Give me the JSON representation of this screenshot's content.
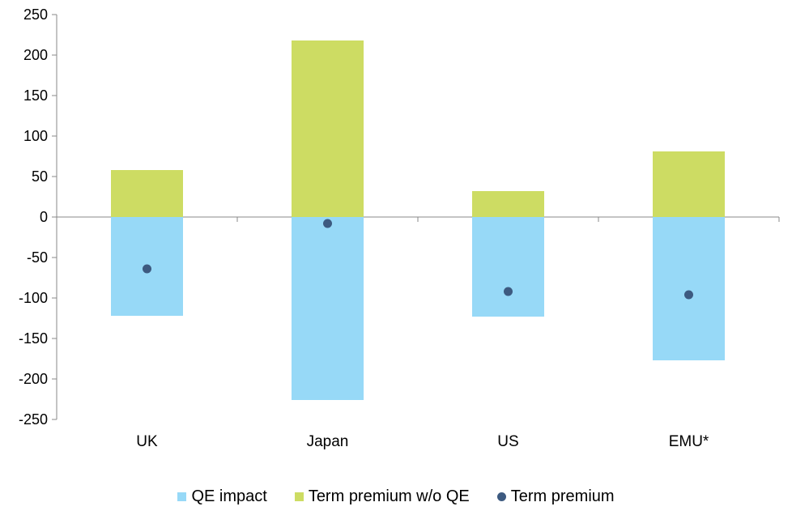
{
  "chart_data": {
    "type": "bar",
    "stacked": true,
    "categories": [
      "UK",
      "Japan",
      "US",
      "EMU*"
    ],
    "series": [
      {
        "name": "QE impact",
        "kind": "bar",
        "color": "#97d9f7",
        "values": [
          -122,
          -226,
          -123,
          -177
        ]
      },
      {
        "name": "Term premium w/o QE",
        "kind": "bar",
        "color": "#cddc63",
        "values": [
          58,
          218,
          32,
          81
        ]
      },
      {
        "name": "Term premium",
        "kind": "scatter",
        "color": "#3d5a80",
        "values": [
          -64,
          -8,
          -92,
          -96
        ]
      }
    ],
    "ylim": [
      -250,
      250
    ],
    "yticks": [
      250,
      200,
      150,
      100,
      50,
      0,
      -50,
      -100,
      -150,
      -200,
      -250
    ],
    "grid": false,
    "legend_position": "bottom"
  }
}
